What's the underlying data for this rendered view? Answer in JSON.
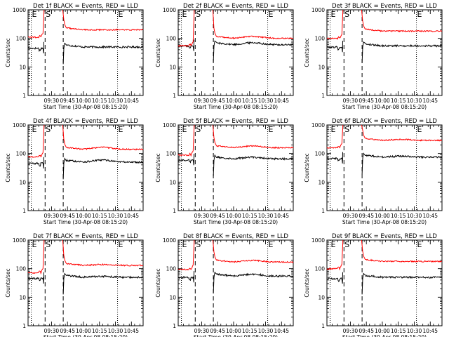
{
  "chart_data": {
    "type": "line",
    "y_scale": "log",
    "ylim": [
      1,
      1000
    ],
    "ylabel": "Counts/sec",
    "xlabel": "Start Time (30-Apr-08 08:15:20)",
    "y_ticks": [
      {
        "value": 1,
        "label": "1"
      },
      {
        "value": 10,
        "label": "10"
      },
      {
        "value": 100,
        "label": "100"
      },
      {
        "value": 1000,
        "label": "1000"
      }
    ],
    "x_ticks": [
      "09:30",
      "09:45",
      "10:00",
      "10:15",
      "10:30",
      "10:45"
    ],
    "x_tick_minutes": [
      570,
      585,
      600,
      615,
      630,
      645
    ],
    "xlim_minutes": [
      548,
      656
    ],
    "markers": [
      {
        "label": "E",
        "minute": 551,
        "style": "dotted"
      },
      {
        "label": "S",
        "minute": 564,
        "style": "dashed"
      },
      {
        "label": "",
        "minute": 581,
        "style": "dashed"
      },
      {
        "label": "E",
        "minute": 632,
        "style": "dotted"
      }
    ],
    "colors": {
      "events": "#000000",
      "lld": "#ff0000",
      "axes": "#000000"
    },
    "panels": [
      {
        "title": "Det  1f  BLACK = Events, RED = LLD",
        "events": 50,
        "lld": 200,
        "hump": 0
      },
      {
        "title": "Det  2f  BLACK = Events, RED = LLD",
        "events": 60,
        "lld": 100,
        "hump": 0.12
      },
      {
        "title": "Det  3f  BLACK = Events, RED = LLD",
        "events": 55,
        "lld": 180,
        "hump": 0
      },
      {
        "title": "Det  4f  BLACK = Events, RED = LLD",
        "events": 50,
        "lld": 140,
        "hump": 0.12
      },
      {
        "title": "Det  5f  BLACK = Events, RED = LLD",
        "events": 65,
        "lld": 160,
        "hump": 0.1
      },
      {
        "title": "Det  6f  BLACK = Events, RED = LLD",
        "events": 75,
        "lld": 290,
        "hump": 0.05
      },
      {
        "title": "Det  7f  BLACK = Events, RED = LLD",
        "events": 50,
        "lld": 130,
        "hump": 0.05
      },
      {
        "title": "Det  8f  BLACK = Events, RED = LLD",
        "events": 55,
        "lld": 170,
        "hump": 0.1
      },
      {
        "title": "Det  9f  BLACK = Events, RED = LLD",
        "events": 50,
        "lld": 180,
        "hump": 0
      }
    ]
  }
}
